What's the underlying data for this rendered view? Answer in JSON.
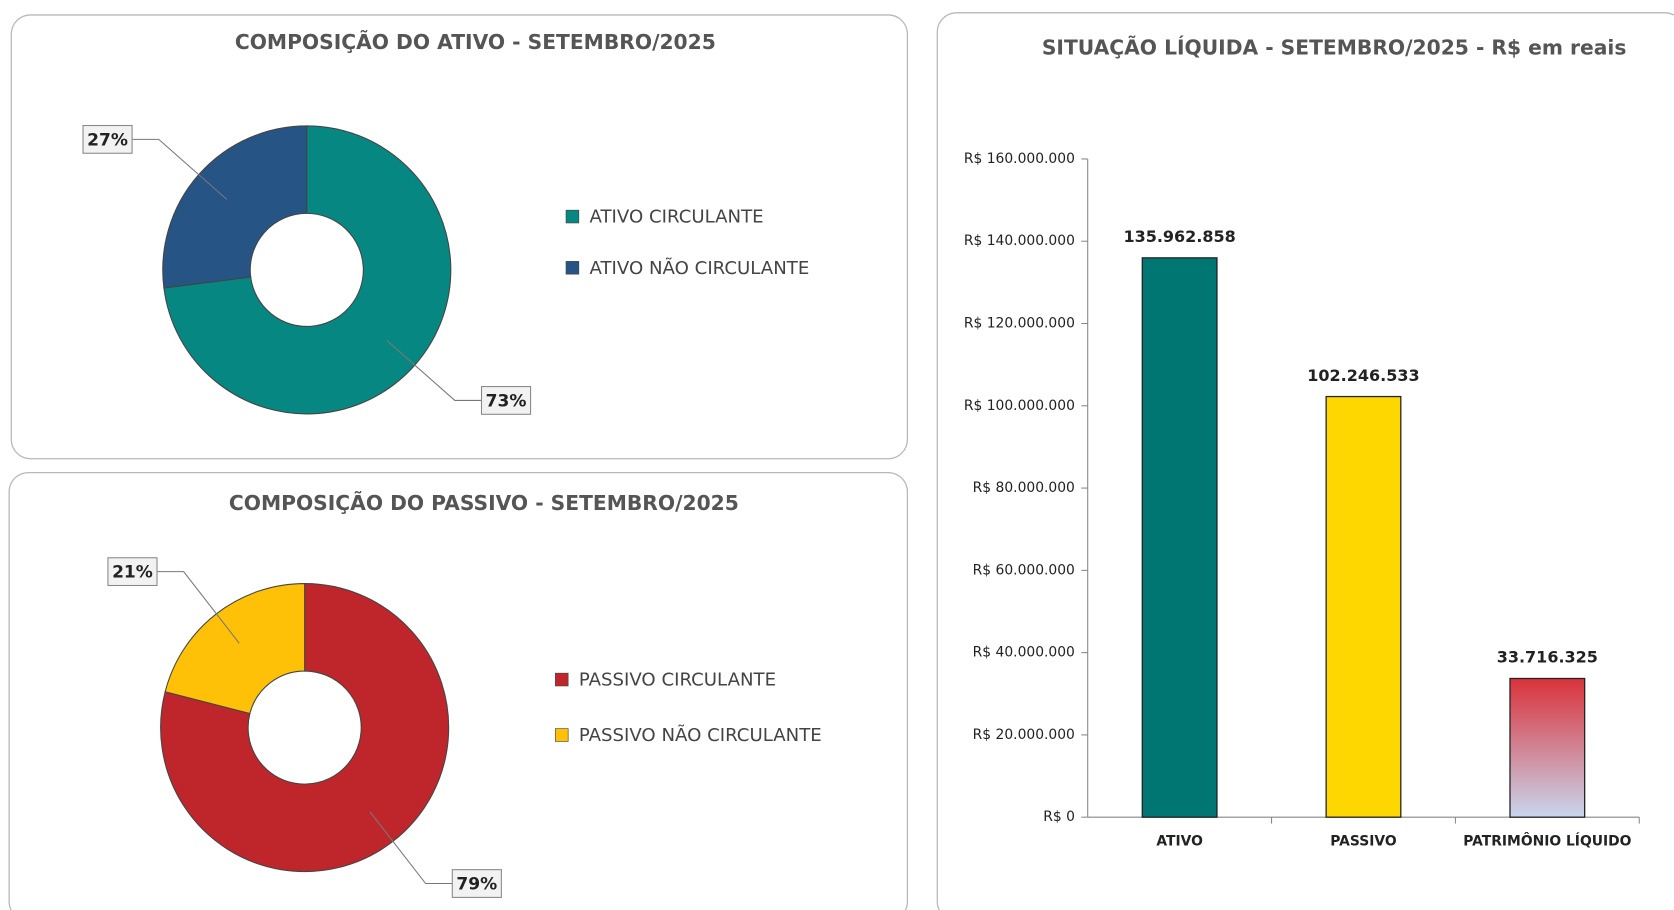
{
  "chart_data": [
    {
      "type": "donut",
      "title": "COMPOSIÇÃO DO ATIVO - SETEMBRO/2025",
      "categories": [
        "ATIVO CIRCULANTE",
        "ATIVO NÃO CIRCULANTE"
      ],
      "values": [
        73,
        27
      ],
      "value_labels": [
        "73%",
        "27%"
      ],
      "colors": [
        "#078782",
        "#265485"
      ],
      "legend": "right"
    },
    {
      "type": "donut",
      "title": "COMPOSIÇÃO DO PASSIVO - SETEMBRO/2025",
      "categories": [
        "PASSIVO CIRCULANTE",
        "PASSIVO NÃO CIRCULANTE"
      ],
      "values": [
        79,
        21
      ],
      "value_labels": [
        "79%",
        "21%"
      ],
      "colors": [
        "#be262c",
        "#ffc107"
      ],
      "legend": "right"
    },
    {
      "type": "bar",
      "title": "SITUAÇÃO LÍQUIDA - SETEMBRO/2025 - R$ em reais",
      "categories": [
        "ATIVO",
        "PASSIVO",
        "PATRIMÔNIO LÍQUIDO"
      ],
      "values": [
        135962858,
        102246533,
        33716325
      ],
      "value_labels": [
        "135.962.858",
        "102.246.533",
        "33.716.325"
      ],
      "colors": [
        "#007672",
        "#ffd700",
        "#d9323a"
      ],
      "ylim": [
        0,
        160000000
      ],
      "yticks": [
        {
          "value": 0,
          "label": "R$ 0"
        },
        {
          "value": 20000000,
          "label": "R$ 20.000.000"
        },
        {
          "value": 40000000,
          "label": "R$ 40.000.000"
        },
        {
          "value": 60000000,
          "label": "R$ 60.000.000"
        },
        {
          "value": 80000000,
          "label": "R$ 80.000.000"
        },
        {
          "value": 100000000,
          "label": "R$ 100.000.000"
        },
        {
          "value": 120000000,
          "label": "R$ 120.000.000"
        },
        {
          "value": 140000000,
          "label": "R$ 140.000.000"
        },
        {
          "value": 160000000,
          "label": "R$ 160.000.000"
        }
      ],
      "grid": false
    }
  ]
}
